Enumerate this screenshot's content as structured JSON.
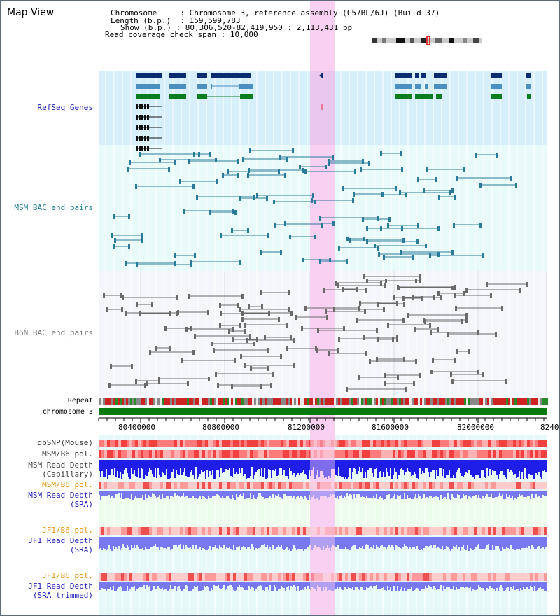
{
  "header": {
    "title": "Map View",
    "chromosome_key": "Chromosome",
    "chromosome_value": "Chromosome 3, reference assembly (C57BL/6J) (Build 37)",
    "length_key": "Length (b.p.)",
    "length_value": "159,599,783",
    "show_key": "Show (b.p.)",
    "show_value": "80,306,520-82,419,950 : 2,113,431 bp",
    "coverage_key": "Read coverage check span",
    "coverage_value": "10,000"
  },
  "tracks": {
    "refseq": "RefSeq Genes",
    "msm_bac": "MSM BAC end pairs",
    "b6n_bac": "B6N BAC end pairs",
    "repeat": "Repeat",
    "chromosome": "chromosome 3",
    "dbsnp": "dbSNP(Mouse)",
    "msm_b6_pol": "MSM/B6 pol.",
    "msm_read_depth_cap_1": "MSM Read Depth",
    "msm_read_depth_cap_2": "(Capillary)",
    "msm_b6_pol_2": "MSM/B6 pol.",
    "msm_read_depth_sra_1": "MSM Read Depth",
    "msm_read_depth_sra_2": "(SRA)",
    "jf1_b6_pol": "JF1/B6 pol.",
    "jf1_read_depth_1": "JF1 Read Depth",
    "jf1_read_depth_2": "(SRA)",
    "jf1_b6_pol_2": "JF1/B6 pol.",
    "jf1_trim_1": "JF1 Read Depth",
    "jf1_trim_2": "(SRA trimmed)"
  },
  "axis": {
    "ticks": [
      "80400000",
      "80800000",
      "81200000",
      "81600000",
      "82000000",
      "8240"
    ]
  },
  "colors": {
    "refseq_bg": "#d6effa",
    "msm_bg": "#e8fafa",
    "b6n_bg": "#f4f6fb",
    "highlight": "#f7d0f2",
    "gene_dark": "#0a2c6e",
    "gene_mid": "#4b8fc0",
    "gene_green": "#0a7d1e",
    "msm_pair": "#2a7a9a",
    "b6n_pair": "#6a6a6a",
    "chromosome_bar": "#077a12",
    "depth_blue": "#1e1ee8",
    "depth_light": "#7878f0",
    "label_blue": "#1b1bb8",
    "label_teal": "#1a7f94",
    "label_orange": "#e8930a"
  }
}
